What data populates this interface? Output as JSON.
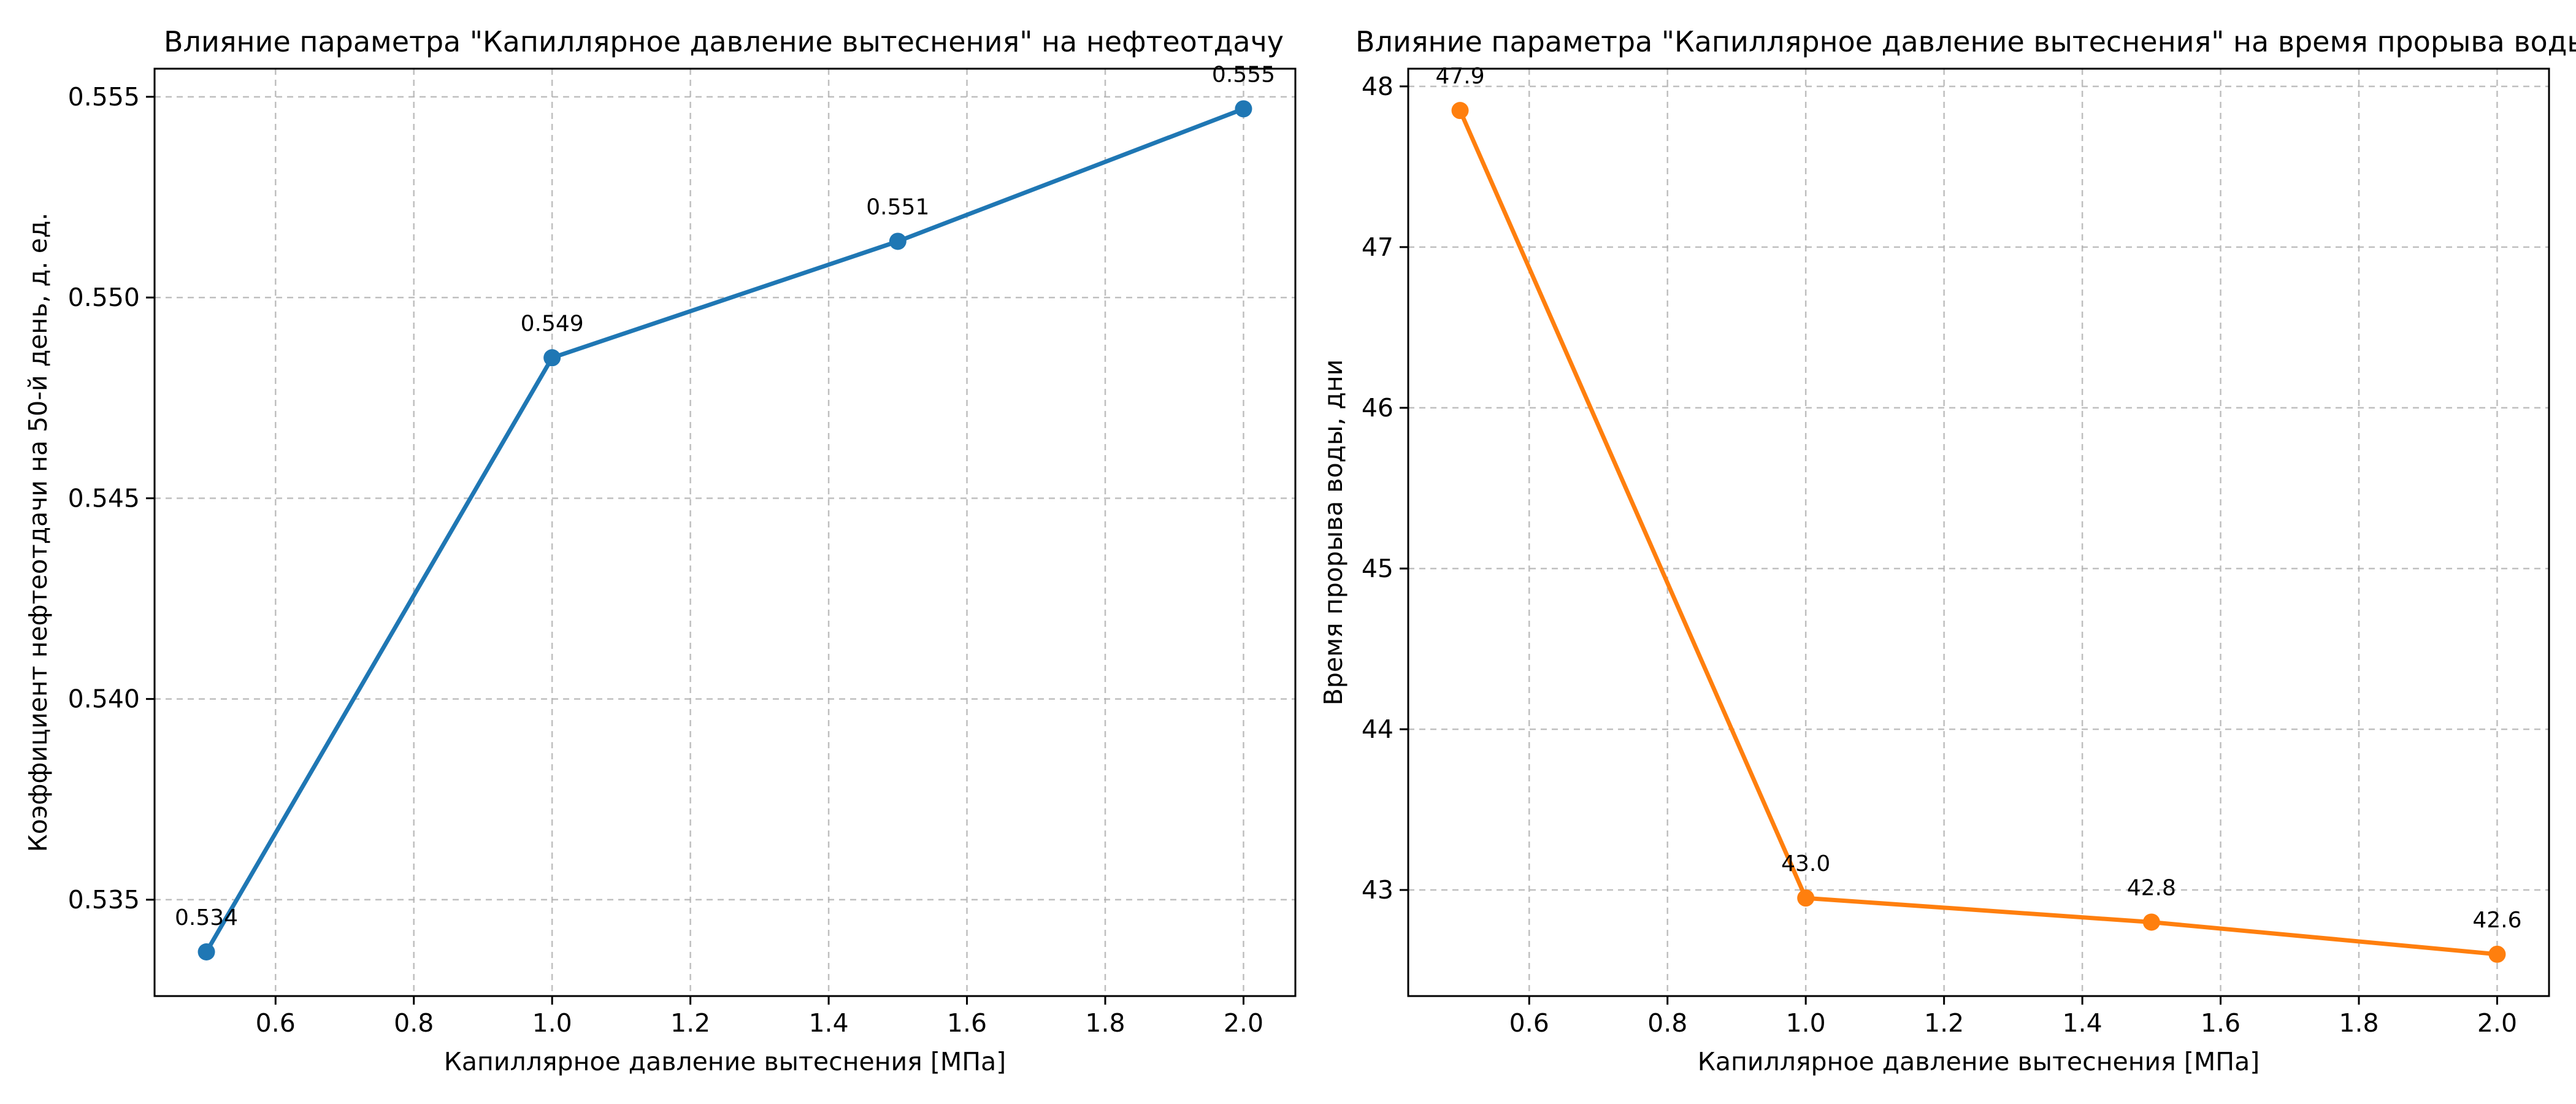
{
  "chart_data": [
    {
      "type": "line",
      "title": "Влияние параметра \"Капиллярное давление вытеснения\" на нефтеотдачу",
      "xlabel": "Капиллярное давление вытеснения [МПа]",
      "ylabel": "Коэффициент нефтеотдачи на 50-й день, д. ед.",
      "x": [
        0.5,
        1.0,
        1.5,
        2.0
      ],
      "series": [
        {
          "values": [
            0.5337,
            0.5485,
            0.5514,
            0.5547
          ],
          "color": "#1f77b4"
        }
      ],
      "data_labels": [
        "0.534",
        "0.549",
        "0.551",
        "0.555"
      ],
      "xlim": [
        0.425,
        2.075
      ],
      "ylim": [
        0.5326,
        0.5557
      ],
      "xticks": [
        0.6,
        0.8,
        1.0,
        1.2,
        1.4,
        1.6,
        1.8,
        2.0
      ],
      "xtick_labels": [
        "0.6",
        "0.8",
        "1.0",
        "1.2",
        "1.4",
        "1.6",
        "1.8",
        "2.0"
      ],
      "yticks": [
        0.535,
        0.54,
        0.545,
        0.55,
        0.555
      ],
      "ytick_labels": [
        "0.535",
        "0.540",
        "0.545",
        "0.550",
        "0.555"
      ],
      "grid": true
    },
    {
      "type": "line",
      "title": "Влияние параметра \"Капиллярное давление вытеснения\" на время прорыва воды",
      "xlabel": "Капиллярное давление вытеснения [МПа]",
      "ylabel": "Время прорыва воды, дни",
      "x": [
        0.5,
        1.0,
        1.5,
        2.0
      ],
      "series": [
        {
          "values": [
            47.85,
            42.95,
            42.8,
            42.6
          ],
          "color": "#ff7f0e"
        }
      ],
      "data_labels": [
        "47.9",
        "43.0",
        "42.8",
        "42.6"
      ],
      "xlim": [
        0.425,
        2.075
      ],
      "ylim": [
        42.34,
        48.11
      ],
      "xticks": [
        0.6,
        0.8,
        1.0,
        1.2,
        1.4,
        1.6,
        1.8,
        2.0
      ],
      "xtick_labels": [
        "0.6",
        "0.8",
        "1.0",
        "1.2",
        "1.4",
        "1.6",
        "1.8",
        "2.0"
      ],
      "yticks": [
        43,
        44,
        45,
        46,
        47,
        48
      ],
      "ytick_labels": [
        "43",
        "44",
        "45",
        "46",
        "47",
        "48"
      ],
      "grid": true
    }
  ]
}
